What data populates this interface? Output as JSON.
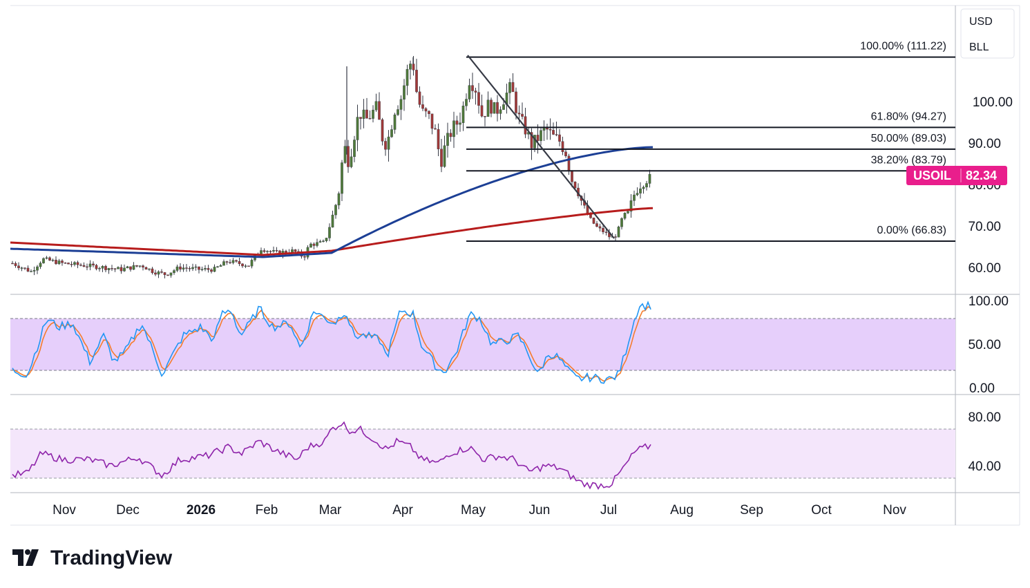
{
  "branding": {
    "name": "TradingView"
  },
  "units": [
    "USD",
    "BLL"
  ],
  "symbol": {
    "name": "USOIL",
    "last": "82.34",
    "color": "#e91e8c"
  },
  "colors": {
    "ma_fast": "#1c3f95",
    "ma_slow": "#b71c1c",
    "stoch_k": "#2196f3",
    "stoch_d": "#f57c2c",
    "rsi": "#8e24aa",
    "stoch_band": "#e6cffb",
    "rsi_band": "#f4e6fb",
    "fib": "#131722"
  },
  "chart_data": {
    "type": "candlestick",
    "x_axis": {
      "type": "time",
      "tick_labels": [
        "Nov",
        "Dec",
        "2026",
        "Feb",
        "Mar",
        "Apr",
        "May",
        "Jun",
        "Jul",
        "Aug",
        "Sep",
        "Oct",
        "Nov"
      ]
    },
    "price_axis": {
      "tick_labels": [
        "100.00",
        "90.00",
        "80.00",
        "70.00",
        "60.00"
      ],
      "ylim": [
        56,
        116
      ]
    },
    "fib_retracement": {
      "levels": [
        {
          "label": "100.00% (111.22)",
          "value": 111.22
        },
        {
          "label": "61.80% (94.27)",
          "value": 94.27
        },
        {
          "label": "50.00% (89.03)",
          "value": 89.03
        },
        {
          "label": "38.20% (83.79)",
          "value": 83.79
        },
        {
          "label": "0.00% (66.83)",
          "value": 66.83
        }
      ]
    },
    "key_prices": {
      "low_oct_nov": 59,
      "range_dec_jan": [
        59,
        63
      ],
      "high_mar": 109,
      "high_apr": 111.22,
      "low_jun": 66.83,
      "last": 82.34
    },
    "moving_averages": [
      {
        "color": "blue",
        "start": 65.0,
        "end": 89.5
      },
      {
        "color": "red",
        "start": 66.5,
        "end": 74.8
      }
    ],
    "stochastic": {
      "tick_labels": [
        "100.00",
        "50.00",
        "0.00"
      ],
      "band": [
        20,
        80
      ],
      "last_k": 95,
      "last_d": 95
    },
    "rsi": {
      "tick_labels": [
        "80.00",
        "40.00"
      ],
      "band": [
        30,
        70
      ],
      "last": 60
    }
  }
}
